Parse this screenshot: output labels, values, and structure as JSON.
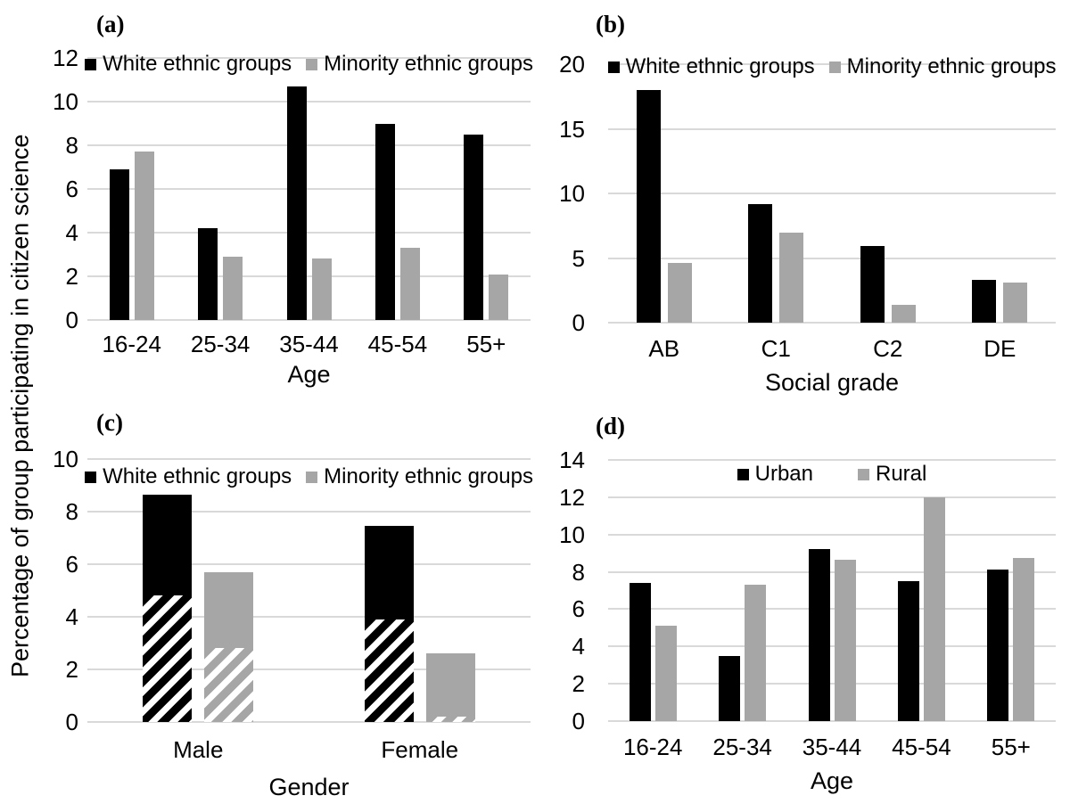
{
  "figure": {
    "shared_ylabel": "Percentage of group participating in citizen science"
  },
  "colors": {
    "bar_black": "#000000",
    "bar_gray": "#a6a6a6",
    "gridline": "#d9d9d9",
    "background": "#ffffff",
    "text": "#000000"
  },
  "chart_data": [
    {
      "id": "a",
      "panel_label": "(a)",
      "type": "bar",
      "categories": [
        "16-24",
        "25-34",
        "35-44",
        "45-54",
        "55+"
      ],
      "xlabel": "Age",
      "ylabel": "Percentage of group participating in citizen science",
      "ylim": [
        0,
        12
      ],
      "ytick_step": 2,
      "yticks": [
        0,
        2,
        4,
        6,
        8,
        10,
        12
      ],
      "grid": true,
      "legend_position": "top-inside",
      "series": [
        {
          "name": "White ethnic groups",
          "color_key": "bar_black",
          "values": [
            6.9,
            4.2,
            10.7,
            9.0,
            8.5
          ]
        },
        {
          "name": "Minority ethnic groups",
          "color_key": "bar_gray",
          "values": [
            7.7,
            2.9,
            2.8,
            3.3,
            2.1
          ]
        }
      ]
    },
    {
      "id": "b",
      "panel_label": "(b)",
      "type": "bar",
      "categories": [
        "AB",
        "C1",
        "C2",
        "DE"
      ],
      "xlabel": "Social grade",
      "ylim": [
        0,
        20
      ],
      "ytick_step": 5,
      "yticks": [
        0,
        5,
        10,
        15,
        20
      ],
      "grid": true,
      "legend_position": "top-inside",
      "series": [
        {
          "name": "White ethnic groups",
          "color_key": "bar_black",
          "values": [
            18.0,
            9.2,
            5.9,
            3.3
          ]
        },
        {
          "name": "Minority ethnic groups",
          "color_key": "bar_gray",
          "values": [
            4.6,
            7.0,
            1.4,
            3.1
          ]
        }
      ]
    },
    {
      "id": "c",
      "panel_label": "(c)",
      "type": "stacked-bar",
      "categories": [
        "Male",
        "Female"
      ],
      "xlabel": "Gender",
      "ylim": [
        0,
        10
      ],
      "ytick_step": 2,
      "yticks": [
        0,
        2,
        4,
        6,
        8,
        10
      ],
      "grid": true,
      "legend_position": "top-inside",
      "hatch_note": "lower segment of each bar is diagonally hatched, upper segment solid",
      "series": [
        {
          "name": "White ethnic groups",
          "color_key": "bar_black",
          "values": [
            8.65,
            7.45
          ],
          "hatched_values": [
            4.8,
            3.9
          ]
        },
        {
          "name": "Minority ethnic groups",
          "color_key": "bar_gray",
          "values": [
            5.7,
            2.6
          ],
          "hatched_values": [
            2.8,
            0.2
          ]
        }
      ]
    },
    {
      "id": "d",
      "panel_label": "(d)",
      "type": "bar",
      "categories": [
        "16-24",
        "25-34",
        "35-44",
        "45-54",
        "55+"
      ],
      "xlabel": "Age",
      "ylim": [
        0,
        14
      ],
      "ytick_step": 2,
      "yticks": [
        0,
        2,
        4,
        6,
        8,
        10,
        12,
        14
      ],
      "grid": true,
      "legend_position": "top-inside",
      "series": [
        {
          "name": "Urban",
          "color_key": "bar_black",
          "values": [
            7.4,
            3.5,
            9.2,
            7.5,
            8.1
          ]
        },
        {
          "name": "Rural",
          "color_key": "bar_gray",
          "values": [
            5.1,
            7.3,
            8.65,
            12.0,
            8.75
          ]
        }
      ]
    }
  ]
}
